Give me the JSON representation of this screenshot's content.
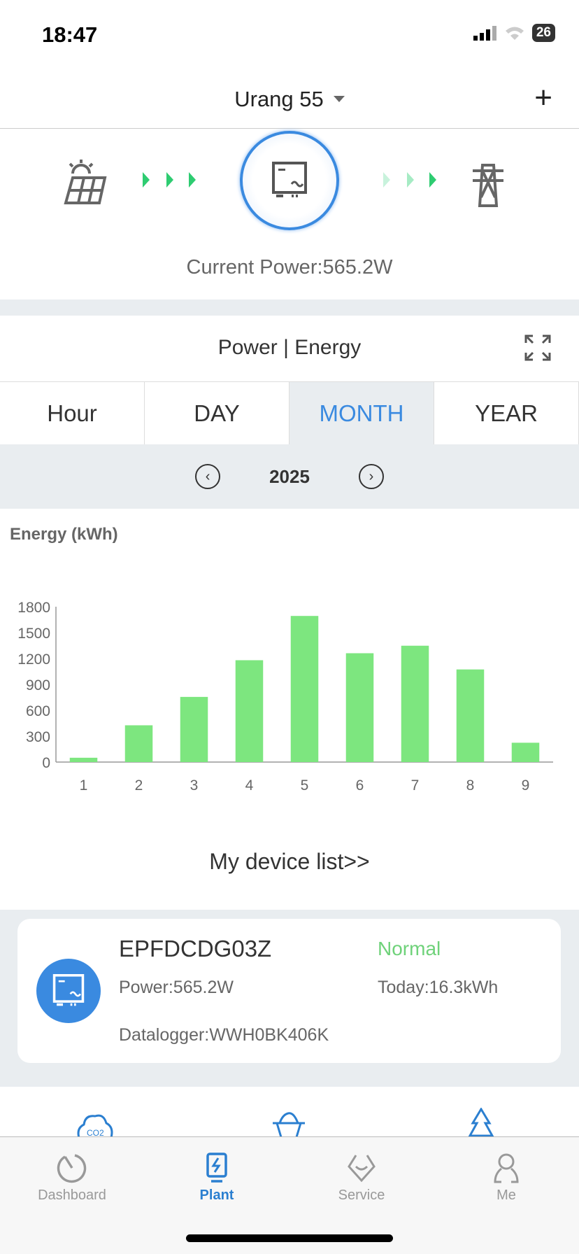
{
  "status_bar": {
    "time": "18:47",
    "battery": "26"
  },
  "header": {
    "title": "Urang 55",
    "add_icon": "plus-icon"
  },
  "flow": {
    "current_power": "Current Power:565.2W",
    "source_icon": "solar-panel-icon",
    "center_icon": "inverter-icon",
    "target_icon": "power-tower-icon",
    "arrow_color": "#2ecc71"
  },
  "chart_section": {
    "title": "Power | Energy",
    "tabs": [
      {
        "label": "Hour"
      },
      {
        "label": "DAY"
      },
      {
        "label": "MONTH",
        "active": true
      },
      {
        "label": "YEAR"
      }
    ],
    "year": "2025",
    "ylabel": "Energy (kWh)"
  },
  "chart_data": {
    "type": "bar",
    "categories": [
      "1",
      "2",
      "3",
      "4",
      "5",
      "6",
      "7",
      "8",
      "9"
    ],
    "values": [
      50,
      426,
      755,
      1180,
      1693,
      1261,
      1348,
      1073,
      224
    ],
    "ylim": [
      0,
      1800
    ],
    "yticks": [
      "0",
      "300",
      "600",
      "900",
      "1200",
      "1500",
      "1800"
    ],
    "ylabel": "Energy (kWh)",
    "color": "#7de67f",
    "grid": false
  },
  "device_list": {
    "link": "My device list>>",
    "devices": [
      {
        "name": "EPFDCDG03Z",
        "status": "Normal",
        "power": "Power:565.2W",
        "today": "Today:16.3kWh",
        "datalogger": "Datalogger:WWH0BK406K"
      }
    ]
  },
  "nav": {
    "items": [
      {
        "label": "Dashboard"
      },
      {
        "label": "Plant",
        "active": true
      },
      {
        "label": "Service"
      },
      {
        "label": "Me"
      }
    ]
  },
  "colors": {
    "accent": "#3a8ae0",
    "status_normal": "#6fd27a"
  }
}
